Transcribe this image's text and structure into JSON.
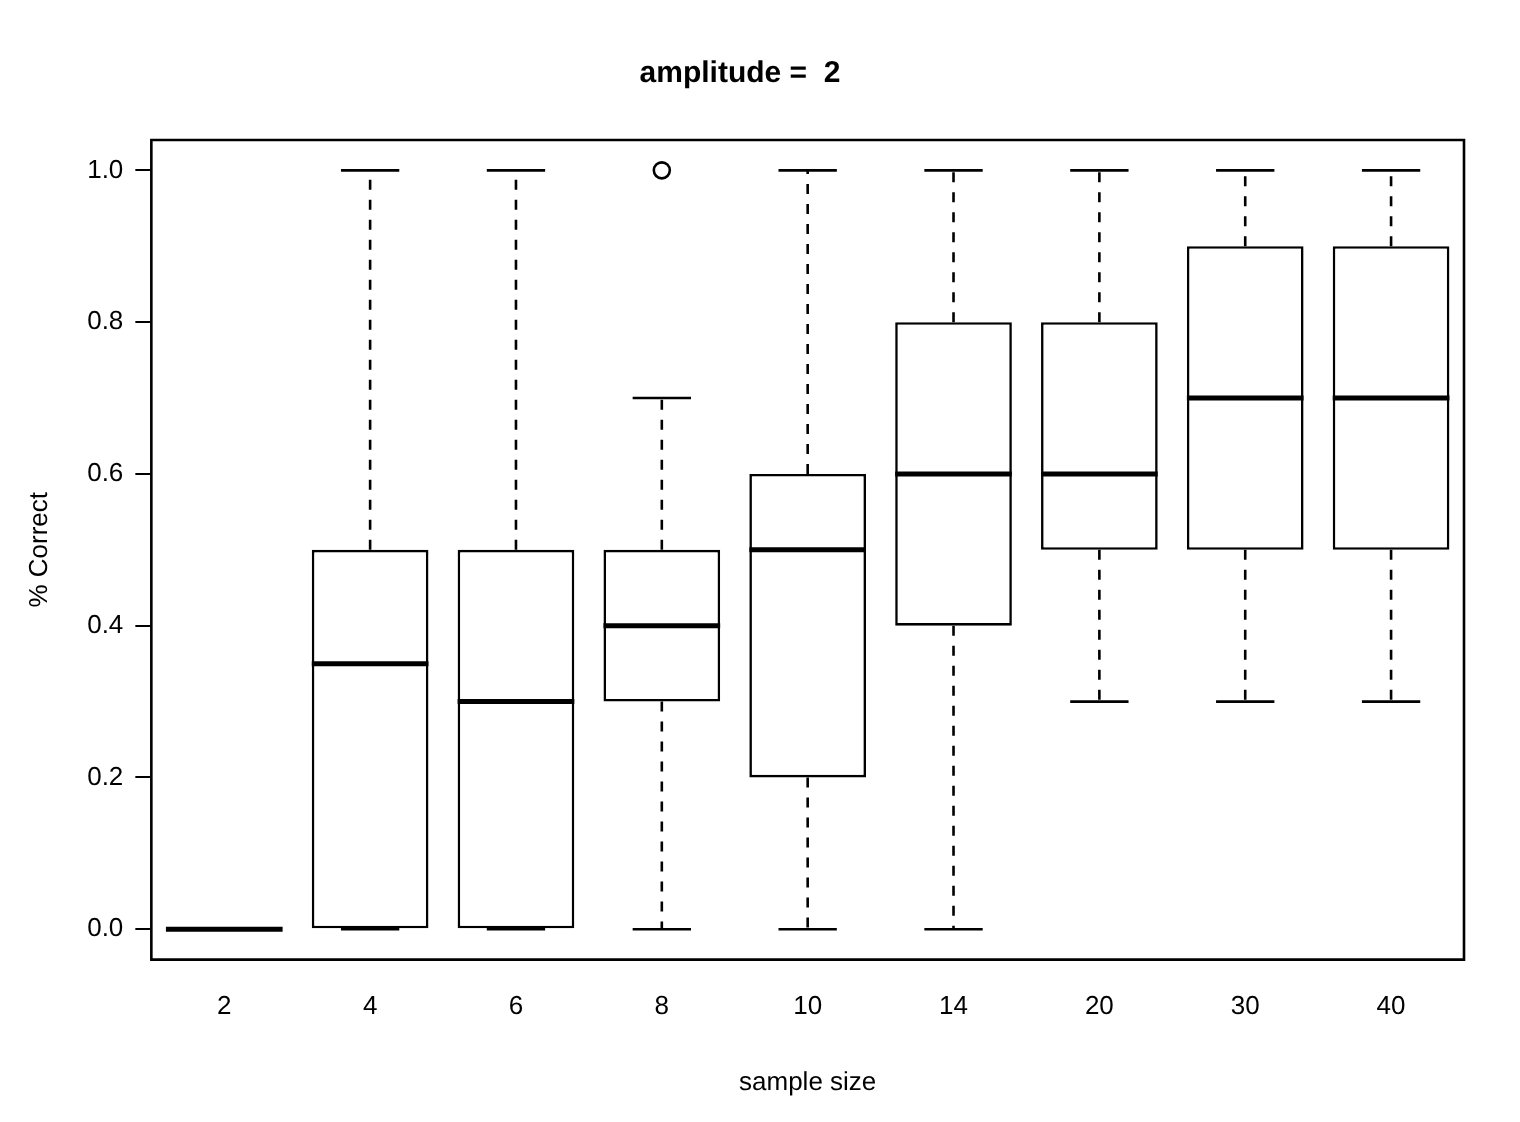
{
  "chart_data": {
    "type": "box",
    "title": "amplitude =  2",
    "xlabel": "sample size",
    "ylabel": "% Correct",
    "categories": [
      "2",
      "4",
      "6",
      "8",
      "10",
      "14",
      "20",
      "30",
      "40"
    ],
    "ylim": [
      -0.04,
      1.04
    ],
    "yticks": [
      {
        "value": 0,
        "label": "0.0"
      },
      {
        "value": 0.2,
        "label": "0.2"
      },
      {
        "value": 0.4,
        "label": "0.4"
      },
      {
        "value": 0.6,
        "label": "0.6"
      },
      {
        "value": 0.8,
        "label": "0.8"
      },
      {
        "value": 1,
        "label": "1.0"
      }
    ],
    "color": "#000000",
    "grid": false,
    "legend": false,
    "boxes": [
      {
        "low": 0,
        "q1": 0,
        "median": 0,
        "q3": 0,
        "high": 0
      },
      {
        "low": 0,
        "q1": 0,
        "median": 0.35,
        "q3": 0.5,
        "high": 1
      },
      {
        "low": 0,
        "q1": 0,
        "median": 0.3,
        "q3": 0.5,
        "high": 1
      },
      {
        "low": 0,
        "q1": 0.3,
        "median": 0.4,
        "q3": 0.5,
        "high": 0.7,
        "outliers": [
          1
        ]
      },
      {
        "low": 0,
        "q1": 0.2,
        "median": 0.5,
        "q3": 0.6,
        "high": 1
      },
      {
        "low": 0,
        "q1": 0.4,
        "median": 0.6,
        "q3": 0.8,
        "high": 1
      },
      {
        "low": 0.3,
        "q1": 0.5,
        "median": 0.6,
        "q3": 0.8,
        "high": 1
      },
      {
        "low": 0.3,
        "q1": 0.5,
        "median": 0.7,
        "q3": 0.9,
        "high": 1
      },
      {
        "low": 0.3,
        "q1": 0.5,
        "median": 0.7,
        "q3": 0.9,
        "high": 1
      }
    ]
  }
}
